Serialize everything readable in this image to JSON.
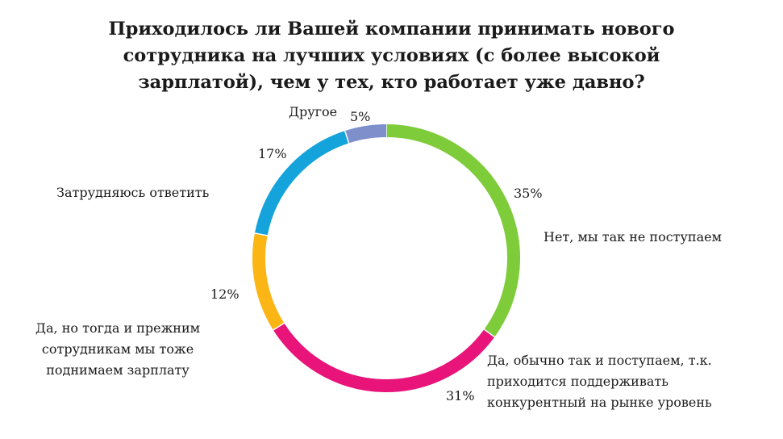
{
  "chart_data": {
    "type": "pie",
    "variant": "donut",
    "title_lines": [
      "Приходилось ли Вашей компании принимать нового",
      "сотрудника на лучших условиях (с более высокой",
      "зарплатой), чем у тех, кто работает уже давно?"
    ],
    "categories": [
      "Нет, мы так не поступаем",
      "Да, обычно так и поступаем, т.к. приходится поддерживать конкурентный на рынке уровень",
      "Да, но тогда и прежним сотрудникам мы тоже поднимаем зарплату",
      "Затрудняюсь ответить",
      "Другое"
    ],
    "label_lines": [
      [
        "Нет, мы так не поступаем"
      ],
      [
        "Да, обычно так и поступаем, т.к.",
        "приходится поддерживать",
        "конкурентный на рынке уровень"
      ],
      [
        "Да, но тогда и прежним",
        "сотрудникам мы тоже",
        "поднимаем зарплату"
      ],
      [
        "Затрудняюсь ответить"
      ],
      [
        "Другое"
      ]
    ],
    "values": [
      35,
      31,
      12,
      17,
      5
    ],
    "value_labels": [
      "35%",
      "31%",
      "12%",
      "17%",
      "5%"
    ],
    "colors": [
      "#7fcc3a",
      "#e8147a",
      "#fbb514",
      "#14a3db",
      "#7e8fcc"
    ],
    "start_angle_deg": 0,
    "direction": "clockwise",
    "legend": "none"
  }
}
